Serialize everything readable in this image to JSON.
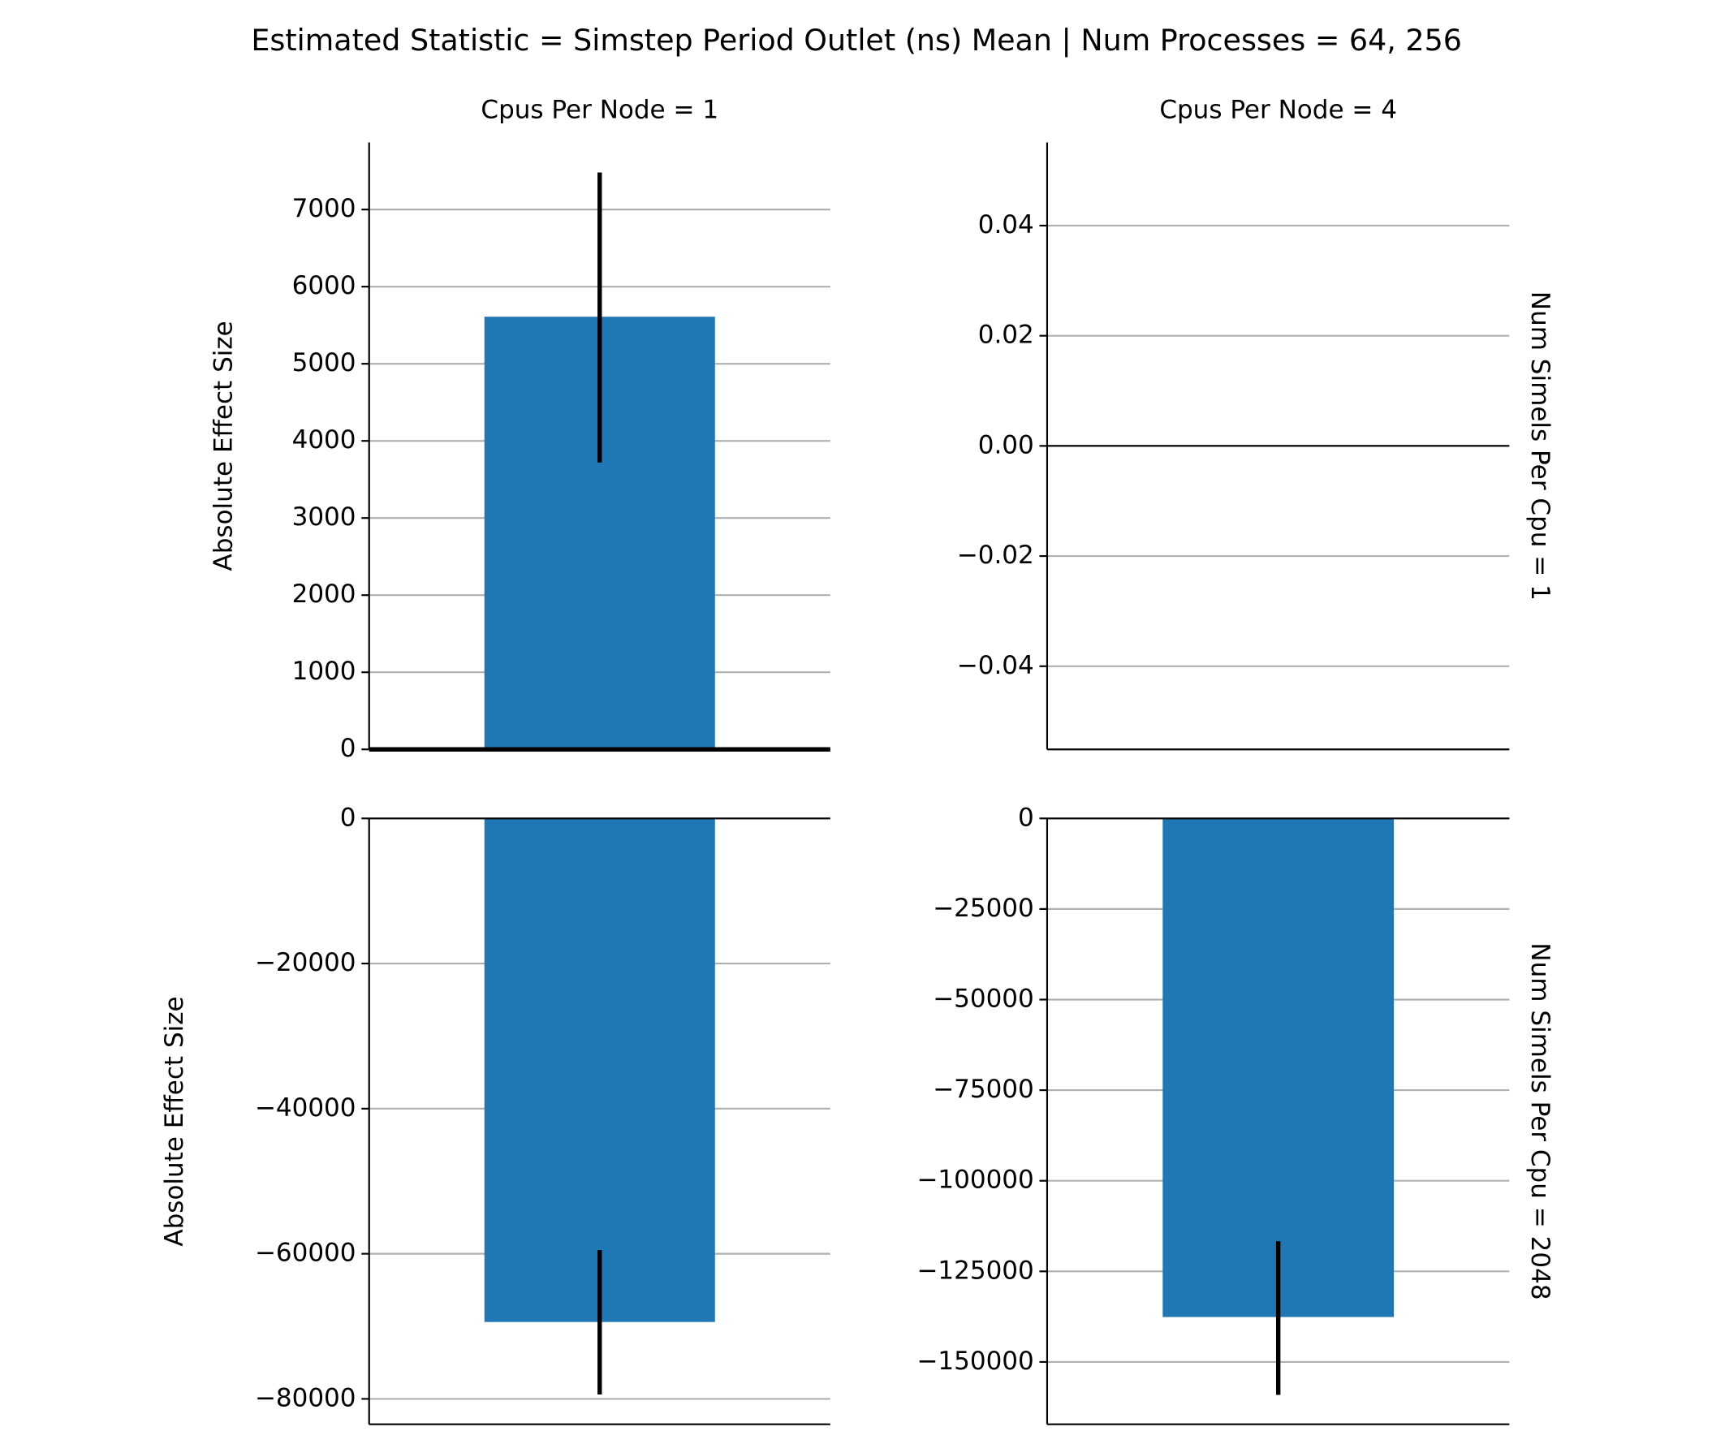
{
  "title": "Estimated Statistic = Simstep Period Outlet (ns) Mean | Num Processes = 64, 256",
  "chart_data": [
    {
      "type": "bar",
      "col_title": "Cpus Per Node = 1",
      "ylabel": "Absolute Effect Size",
      "categories": [
        null
      ],
      "values": [
        5610
      ],
      "error_low": [
        3720
      ],
      "error_high": [
        7480
      ],
      "color": "#1f77b4",
      "ylim": [
        0,
        7870
      ],
      "yticks": [
        0,
        1000,
        2000,
        3000,
        4000,
        5000,
        6000,
        7000
      ],
      "grid": true
    },
    {
      "type": "bar",
      "col_title": "Cpus Per Node = 4",
      "row_title": "Num Simels Per Cpu = 1",
      "categories": [
        null
      ],
      "values": [
        0
      ],
      "color": "#1f77b4",
      "ylim": [
        -0.0551,
        0.0551
      ],
      "yticks": [
        {
          "value": -0.04,
          "label": "−0.04"
        },
        {
          "value": -0.02,
          "label": "−0.02"
        },
        {
          "value": 0,
          "label": "0.00"
        },
        {
          "value": 0.02,
          "label": "0.02"
        },
        {
          "value": 0.04,
          "label": "0.04"
        }
      ],
      "grid": true
    },
    {
      "type": "bar",
      "ylabel": "Absolute Effect Size",
      "categories": [
        null
      ],
      "values": [
        -69400
      ],
      "error_low": [
        -79400
      ],
      "error_high": [
        -59500
      ],
      "color": "#1f77b4",
      "ylim": [
        -83500,
        0
      ],
      "yticks": [
        {
          "value": -80000,
          "label": "−80000"
        },
        {
          "value": -60000,
          "label": "−60000"
        },
        {
          "value": -40000,
          "label": "−40000"
        },
        {
          "value": -20000,
          "label": "−20000"
        },
        0
      ],
      "grid": true
    },
    {
      "type": "bar",
      "row_title": "Num Simels Per Cpu = 2048",
      "categories": [
        null
      ],
      "values": [
        -137600
      ],
      "error_low": [
        -159100
      ],
      "error_high": [
        -116700
      ],
      "color": "#1f77b4",
      "ylim": [
        -167200,
        0
      ],
      "yticks": [
        {
          "value": -150000,
          "label": "−150000"
        },
        {
          "value": -125000,
          "label": "−125000"
        },
        {
          "value": -100000,
          "label": "−100000"
        },
        {
          "value": -75000,
          "label": "−75000"
        },
        {
          "value": -50000,
          "label": "−50000"
        },
        {
          "value": -25000,
          "label": "−25000"
        },
        0
      ],
      "grid": true
    }
  ]
}
